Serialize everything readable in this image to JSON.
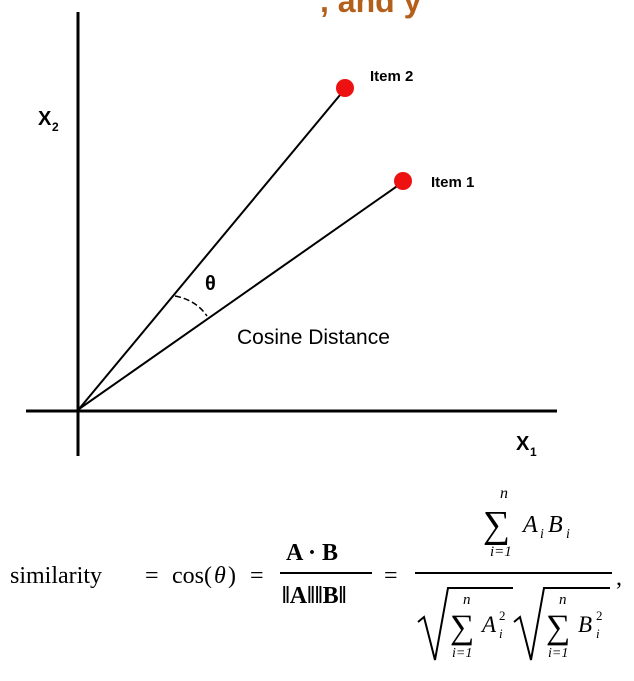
{
  "header_fragment": ", and y",
  "axes": {
    "x_label": "X",
    "x_sub": "1",
    "y_label": "X",
    "y_sub": "2"
  },
  "items": [
    {
      "label": "Item 2",
      "color": "#ee1111"
    },
    {
      "label": "Item 1",
      "color": "#ee1111"
    }
  ],
  "angle_symbol": "θ",
  "distance_label": "Cosine Distance",
  "formula": {
    "lhs": "similarity",
    "eq1": "=",
    "cos": "cos(",
    "theta": "θ",
    "close": ")",
    "eq2": "=",
    "frac1_num": "A · B",
    "frac1_den": "‖A‖‖B‖",
    "eq3": "=",
    "sum_upper": "n",
    "sum_lower": "i=1",
    "sum_symbol": "∑",
    "term_num": "A",
    "term_num_sub": "i",
    "term_num_b": "B",
    "term_num_b_sub": "i",
    "term_a": "A",
    "term_a_sub": "i",
    "term_a_sup": "2",
    "term_b": "B",
    "term_b_sub": "i",
    "term_b_sup": "2",
    "trailing": ","
  }
}
